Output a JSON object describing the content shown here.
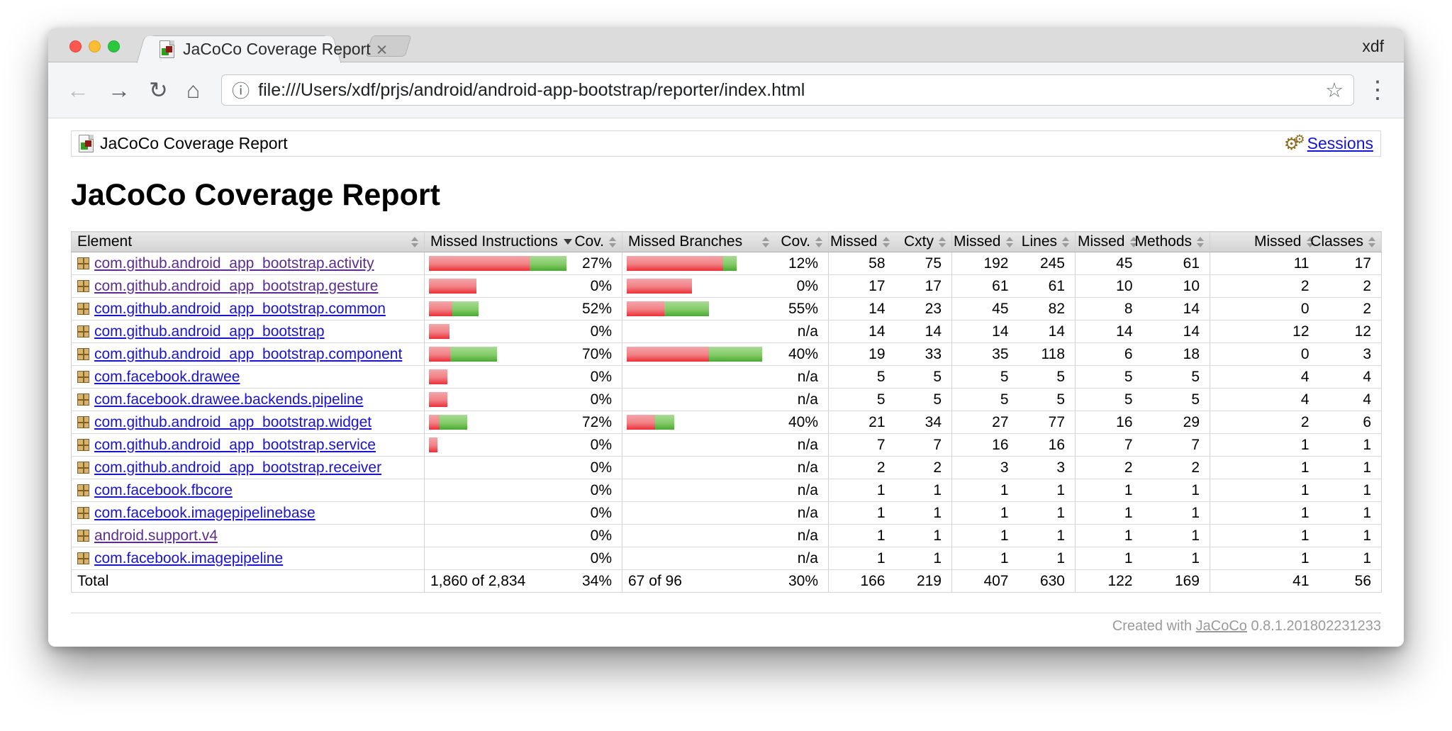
{
  "browser": {
    "tab_title": "JaCoCo Coverage Report",
    "tab_close": "×",
    "profile": "xdf",
    "url": "file:///Users/xdf/prjs/android/android-app-bootstrap/reporter/index.html",
    "icons": {
      "back": "←",
      "forward": "→",
      "reload": "↻",
      "home": "⌂",
      "info": "ⓘ",
      "star": "☆",
      "menu": "⋮",
      "gear": "⚙"
    }
  },
  "breadcrumb": {
    "label": "JaCoCo Coverage Report",
    "sessions": "Sessions"
  },
  "page_title": "JaCoCo Coverage Report",
  "colors": {
    "bar_red_top": "#f3a5a8",
    "bar_red_bottom": "#ed2e38",
    "bar_green_top": "#a8db97",
    "bar_green_bottom": "#4ca733",
    "link_blue": "#1a13d2",
    "link_visited": "#5b2d90",
    "sessions_link": "#1414d6"
  },
  "table": {
    "headers": [
      {
        "label": "Element",
        "sort": "both",
        "layout": "between"
      },
      {
        "label": "Missed Instructions",
        "sort": "desc",
        "layout": "between",
        "gb": true
      },
      {
        "label": "Cov.",
        "sort": "both",
        "layout": "endward"
      },
      {
        "label": "Missed Branches",
        "sort": "both",
        "layout": "between",
        "gb": true
      },
      {
        "label": "Cov.",
        "sort": "both",
        "layout": "endward"
      },
      {
        "label": "Missed",
        "sort": "both",
        "layout": "endward",
        "gb": true
      },
      {
        "label": "Cxty",
        "sort": "both",
        "layout": "endward"
      },
      {
        "label": "Missed",
        "sort": "both",
        "layout": "endward",
        "gb": true
      },
      {
        "label": "Lines",
        "sort": "both",
        "layout": "endward"
      },
      {
        "label": "Missed",
        "sort": "both",
        "layout": "endward",
        "gb": true
      },
      {
        "label": "Methods",
        "sort": "both",
        "layout": "endward"
      },
      {
        "label": "Missed",
        "sort": "both",
        "layout": "endward",
        "gb": true
      },
      {
        "label": "Classes",
        "sort": "both",
        "layout": "endward"
      }
    ],
    "rows": [
      {
        "name": "com.github.android_app_bootstrap.activity",
        "visited": true,
        "instr": {
          "red": 142,
          "green": 52,
          "cov": "27%"
        },
        "branch": {
          "red": 136,
          "green": 19,
          "cov": "12%"
        },
        "cells": [
          "58",
          "75",
          "192",
          "245",
          "45",
          "61",
          "11",
          "17"
        ]
      },
      {
        "name": "com.github.android_app_bootstrap.gesture",
        "visited": true,
        "instr": {
          "red": 67,
          "green": 0,
          "cov": "0%"
        },
        "branch": {
          "red": 92,
          "green": 0,
          "cov": "0%"
        },
        "cells": [
          "17",
          "17",
          "61",
          "61",
          "10",
          "10",
          "2",
          "2"
        ]
      },
      {
        "name": "com.github.android_app_bootstrap.common",
        "visited": false,
        "instr": {
          "red": 33,
          "green": 37,
          "cov": "52%"
        },
        "branch": {
          "red": 53,
          "green": 63,
          "cov": "55%"
        },
        "cells": [
          "14",
          "23",
          "45",
          "82",
          "8",
          "14",
          "0",
          "2"
        ]
      },
      {
        "name": "com.github.android_app_bootstrap",
        "visited": false,
        "instr": {
          "red": 29,
          "green": 0,
          "cov": "0%"
        },
        "branch": {
          "red": 0,
          "green": 0,
          "cov": "n/a"
        },
        "cells": [
          "14",
          "14",
          "14",
          "14",
          "14",
          "14",
          "12",
          "12"
        ]
      },
      {
        "name": "com.github.android_app_bootstrap.component",
        "visited": false,
        "instr": {
          "red": 30,
          "green": 66,
          "cov": "70%"
        },
        "branch": {
          "red": 116,
          "green": 75,
          "cov": "40%"
        },
        "cells": [
          "19",
          "33",
          "35",
          "118",
          "6",
          "18",
          "0",
          "3"
        ]
      },
      {
        "name": "com.facebook.drawee",
        "visited": false,
        "instr": {
          "red": 26,
          "green": 0,
          "cov": "0%"
        },
        "branch": {
          "red": 0,
          "green": 0,
          "cov": "n/a"
        },
        "cells": [
          "5",
          "5",
          "5",
          "5",
          "5",
          "5",
          "4",
          "4"
        ]
      },
      {
        "name": "com.facebook.drawee.backends.pipeline",
        "visited": false,
        "instr": {
          "red": 26,
          "green": 0,
          "cov": "0%"
        },
        "branch": {
          "red": 0,
          "green": 0,
          "cov": "n/a"
        },
        "cells": [
          "5",
          "5",
          "5",
          "5",
          "5",
          "5",
          "4",
          "4"
        ]
      },
      {
        "name": "com.github.android_app_bootstrap.widget",
        "visited": false,
        "instr": {
          "red": 15,
          "green": 39,
          "cov": "72%"
        },
        "branch": {
          "red": 40,
          "green": 27,
          "cov": "40%"
        },
        "cells": [
          "21",
          "34",
          "27",
          "77",
          "16",
          "29",
          "2",
          "6"
        ]
      },
      {
        "name": "com.github.android_app_bootstrap.service",
        "visited": false,
        "instr": {
          "red": 12,
          "green": 0,
          "cov": "0%"
        },
        "branch": {
          "red": 0,
          "green": 0,
          "cov": "n/a"
        },
        "cells": [
          "7",
          "7",
          "16",
          "16",
          "7",
          "7",
          "1",
          "1"
        ]
      },
      {
        "name": "com.github.android_app_bootstrap.receiver",
        "visited": false,
        "instr": {
          "red": 0,
          "green": 0,
          "cov": "0%"
        },
        "branch": {
          "red": 0,
          "green": 0,
          "cov": "n/a"
        },
        "cells": [
          "2",
          "2",
          "3",
          "3",
          "2",
          "2",
          "1",
          "1"
        ]
      },
      {
        "name": "com.facebook.fbcore",
        "visited": false,
        "instr": {
          "red": 0,
          "green": 0,
          "cov": "0%"
        },
        "branch": {
          "red": 0,
          "green": 0,
          "cov": "n/a"
        },
        "cells": [
          "1",
          "1",
          "1",
          "1",
          "1",
          "1",
          "1",
          "1"
        ]
      },
      {
        "name": "com.facebook.imagepipelinebase",
        "visited": false,
        "instr": {
          "red": 0,
          "green": 0,
          "cov": "0%"
        },
        "branch": {
          "red": 0,
          "green": 0,
          "cov": "n/a"
        },
        "cells": [
          "1",
          "1",
          "1",
          "1",
          "1",
          "1",
          "1",
          "1"
        ]
      },
      {
        "name": "android.support.v4",
        "visited": true,
        "instr": {
          "red": 0,
          "green": 0,
          "cov": "0%"
        },
        "branch": {
          "red": 0,
          "green": 0,
          "cov": "n/a"
        },
        "cells": [
          "1",
          "1",
          "1",
          "1",
          "1",
          "1",
          "1",
          "1"
        ]
      },
      {
        "name": "com.facebook.imagepipeline",
        "visited": false,
        "instr": {
          "red": 0,
          "green": 0,
          "cov": "0%"
        },
        "branch": {
          "red": 0,
          "green": 0,
          "cov": "n/a"
        },
        "cells": [
          "1",
          "1",
          "1",
          "1",
          "1",
          "1",
          "1",
          "1"
        ]
      }
    ],
    "total": {
      "label": "Total",
      "instr_text": "1,860 of 2,834",
      "instr_cov": "34%",
      "branch_text": "67 of 96",
      "branch_cov": "30%",
      "cells": [
        "166",
        "219",
        "407",
        "630",
        "122",
        "169",
        "41",
        "56"
      ]
    }
  },
  "footer": {
    "created_with": "Created with ",
    "jacoco_link": "JaCoCo",
    "version": " 0.8.1.201802231233"
  }
}
